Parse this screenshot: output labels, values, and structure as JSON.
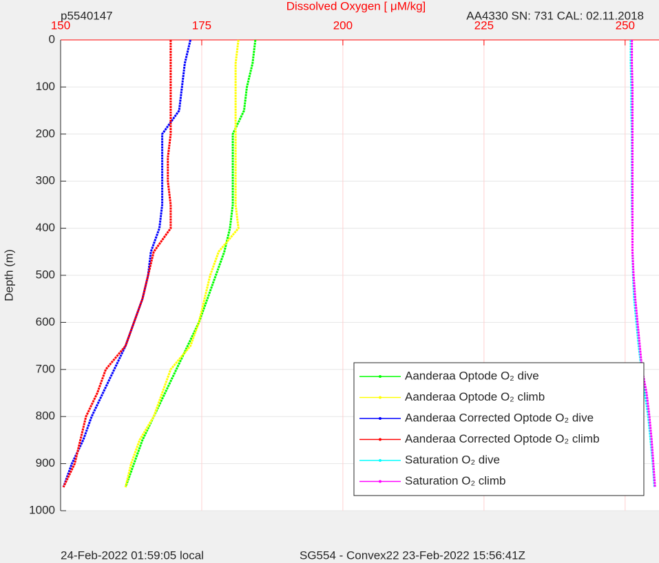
{
  "chart_data": {
    "type": "line",
    "title": "Dissolved Oxygen [ μM/kg]",
    "left_note": "p5540147",
    "right_note": "AA4330   SN: 731   CAL: 02.11.2018",
    "y_label": "Depth (m)",
    "footer_left": "24-Feb-2022 01:59:05 local",
    "footer_right": "SG554 - Convex22 23-Feb-2022 15:56:41Z",
    "depth": [
      0,
      50,
      100,
      150,
      200,
      250,
      300,
      350,
      400,
      450,
      500,
      550,
      600,
      650,
      700,
      750,
      800,
      850,
      900,
      950
    ],
    "series": [
      {
        "name": "Aanderaa Optode O₂ dive",
        "color": "#00ff00",
        "values": [
          184.5,
          184,
          183,
          182.5,
          180.5,
          180.5,
          180.5,
          180.5,
          180,
          179,
          177.5,
          176,
          174.5,
          172.5,
          170.5,
          168.5,
          166.5,
          164.5,
          163,
          161.5
        ]
      },
      {
        "name": "Aanderaa Optode O₂ climb",
        "color": "#ffff00",
        "values": [
          181.5,
          181,
          181,
          181,
          181,
          181,
          181,
          181,
          181.5,
          178,
          176.5,
          175.5,
          174.5,
          173,
          169.5,
          168,
          166.5,
          164,
          162.5,
          161.5
        ]
      },
      {
        "name": "Aanderaa Corrected Optode O₂ dive",
        "color": "#0000ff",
        "values": [
          173,
          172,
          171.5,
          171,
          168,
          168,
          168,
          168,
          167.5,
          166,
          165.5,
          164.5,
          163,
          161.5,
          159.5,
          157.5,
          155.5,
          154,
          152,
          150.5
        ]
      },
      {
        "name": "Aanderaa Corrected Optode O₂ climb",
        "color": "#ff0000",
        "values": [
          169.5,
          169.5,
          169.5,
          169.5,
          169.5,
          169,
          169,
          169.5,
          169.5,
          166.5,
          165.5,
          164.5,
          163,
          161.5,
          158,
          156.5,
          154.5,
          153.5,
          152.5,
          150.5
        ]
      },
      {
        "name": "Saturation O₂ dive",
        "color": "#00ffff",
        "values": [
          251,
          251,
          251.1,
          251.1,
          251.2,
          251.2,
          251.2,
          251.2,
          251.3,
          251.3,
          251.4,
          251.6,
          252,
          252.4,
          252.9,
          253.5,
          254.1,
          254.5,
          254.9,
          255.2
        ]
      },
      {
        "name": "Saturation O₂ climb",
        "color": "#ff00ff",
        "values": [
          251.2,
          251.2,
          251.3,
          251.3,
          251.3,
          251.3,
          251.3,
          251.3,
          251.3,
          251.3,
          251.5,
          251.8,
          252.2,
          252.6,
          253,
          253.8,
          254.3,
          254.7,
          255,
          255.3
        ]
      }
    ],
    "xlim": [
      150,
      256
    ],
    "xticks": [
      150,
      175,
      200,
      225,
      250
    ],
    "ylim": [
      0,
      1000
    ],
    "yticks": [
      0,
      100,
      200,
      300,
      400,
      500,
      600,
      700,
      800,
      900,
      1000
    ],
    "y_reversed": true,
    "grid": true,
    "legend": "southeast"
  }
}
